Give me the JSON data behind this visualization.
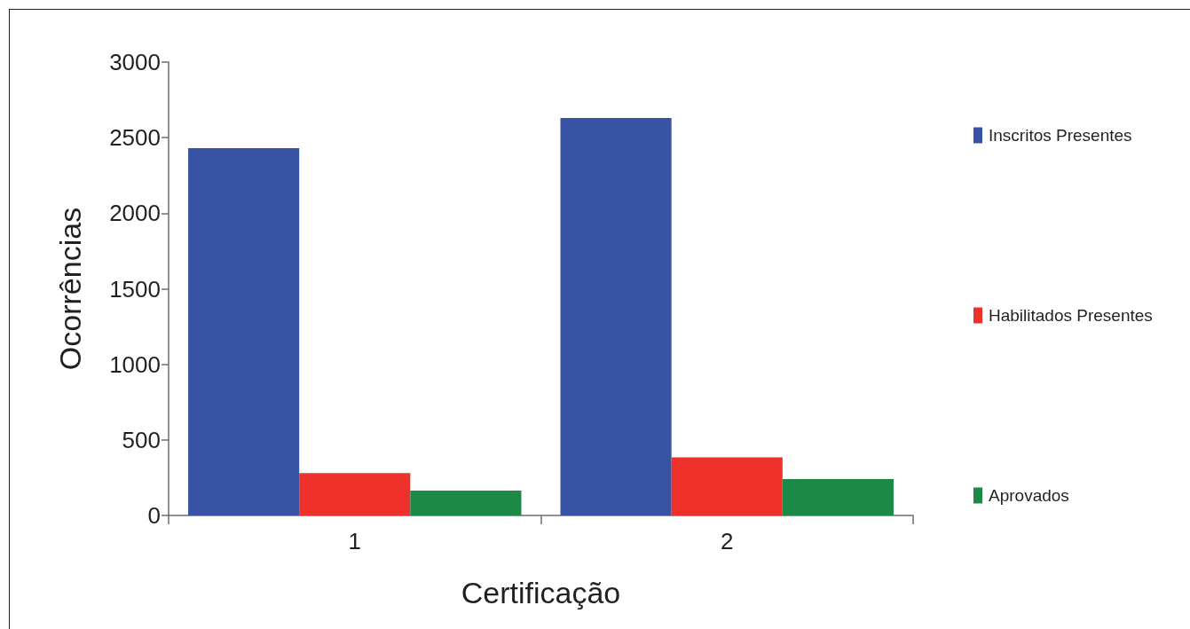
{
  "chart_data": {
    "type": "bar",
    "xlabel": "Certificação",
    "ylabel": "Ocorrências",
    "categories": [
      "1",
      "2"
    ],
    "series": [
      {
        "name": "Inscritos Presentes",
        "color": "#3853a4",
        "values": [
          2430,
          2630
        ]
      },
      {
        "name": "Habilitados Presentes",
        "color": "#ee322b",
        "values": [
          280,
          385
        ]
      },
      {
        "name": "Aprovados",
        "color": "#1d8946",
        "values": [
          165,
          240
        ]
      }
    ],
    "ylim": [
      0,
      3000
    ],
    "yticks": [
      0,
      500,
      1000,
      1500,
      2000,
      2500,
      3000
    ],
    "legend": "right"
  }
}
